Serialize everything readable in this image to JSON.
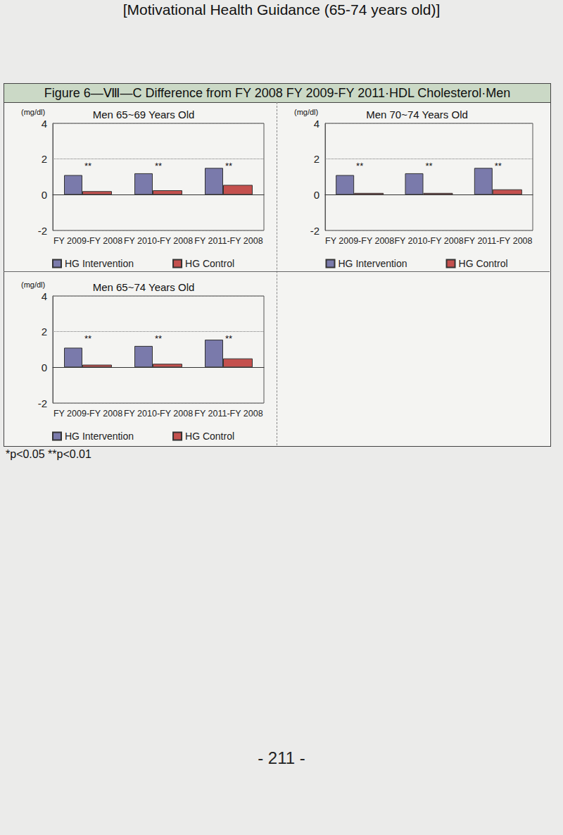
{
  "header": "[Motivational Health Guidance (65-74 years old)]",
  "figure_caption": "Figure 6—Ⅷ—C Difference from FY 2008 FY 2009-FY 2011·HDL Cholesterol·Men",
  "footnote": "*p<0.05   **p<0.01",
  "page_number": "- 211 -",
  "chart_data": [
    {
      "type": "bar",
      "title": "Men 65~69 Years Old",
      "y_label": "(mg/dl)",
      "categories": [
        "FY 2009-FY 2008",
        "FY 2010-FY 2008",
        "FY 2011-FY 2008"
      ],
      "series": [
        {
          "name": "HG Intervention",
          "color": "#7a7aab",
          "values": [
            1.1,
            1.2,
            1.5
          ]
        },
        {
          "name": "HG Control",
          "color": "#c4504e",
          "values": [
            0.2,
            0.25,
            0.55
          ]
        }
      ],
      "ylim": [
        -2,
        4
      ],
      "yticks": [
        -2,
        0,
        2,
        4
      ],
      "grid": true,
      "legend": "bottom",
      "annotations": [
        "**",
        "**",
        "**"
      ]
    },
    {
      "type": "bar",
      "title": "Men 70~74 Years Old",
      "y_label": "(mg/dl)",
      "categories": [
        "FY 2009-FY 2008",
        "FY 2010-FY 2008",
        "FY 2011-FY 2008"
      ],
      "series": [
        {
          "name": "HG Intervention",
          "color": "#7a7aab",
          "values": [
            1.1,
            1.2,
            1.5
          ]
        },
        {
          "name": "HG Control",
          "color": "#c4504e",
          "values": [
            0.1,
            0.1,
            0.3
          ]
        }
      ],
      "ylim": [
        -2,
        4
      ],
      "yticks": [
        -2,
        0,
        2,
        4
      ],
      "grid": true,
      "legend": "bottom",
      "annotations": [
        "**",
        "**",
        "**"
      ]
    },
    {
      "type": "bar",
      "title": "Men 65~74 Years Old",
      "y_label": "(mg/dl)",
      "categories": [
        "FY 2009-FY 2008",
        "FY 2010-FY 2008",
        "FY 2011-FY 2008"
      ],
      "series": [
        {
          "name": "HG Intervention",
          "color": "#7a7aab",
          "values": [
            1.1,
            1.2,
            1.55
          ]
        },
        {
          "name": "HG Control",
          "color": "#c4504e",
          "values": [
            0.15,
            0.2,
            0.5
          ]
        }
      ],
      "ylim": [
        -2,
        4
      ],
      "yticks": [
        -2,
        0,
        2,
        4
      ],
      "grid": true,
      "legend": "bottom",
      "annotations": [
        "**",
        "**",
        "**"
      ]
    }
  ]
}
